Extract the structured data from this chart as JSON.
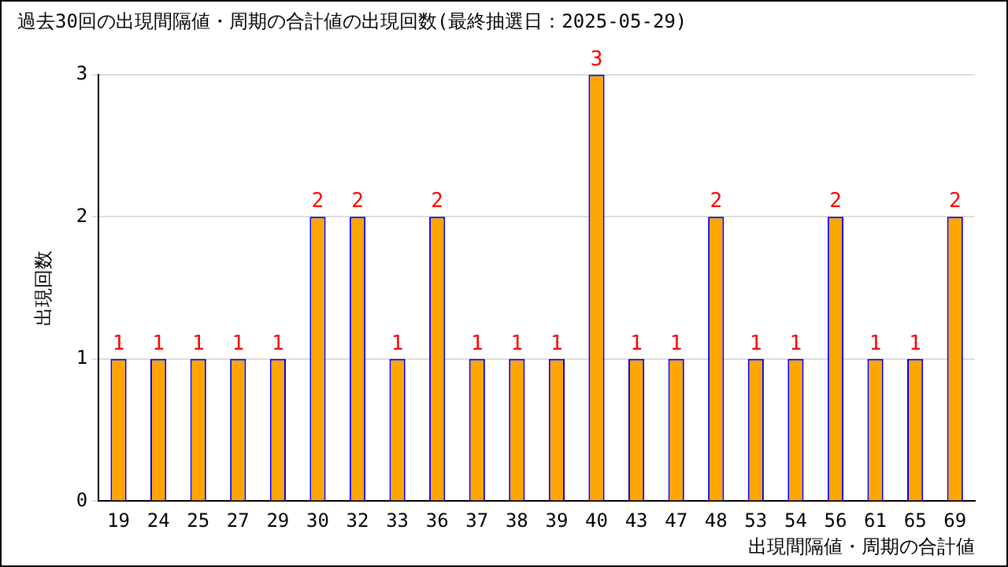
{
  "chart_data": {
    "type": "bar",
    "title": "過去30回の出現間隔値・周期の合計値の出現回数(最終抽選日：2025-05-29)",
    "xlabel": "出現間隔値・周期の合計値",
    "ylabel": "出現回数",
    "categories": [
      "19",
      "24",
      "25",
      "27",
      "29",
      "30",
      "32",
      "33",
      "36",
      "37",
      "38",
      "39",
      "40",
      "43",
      "47",
      "48",
      "53",
      "54",
      "56",
      "61",
      "65",
      "69"
    ],
    "values": [
      1,
      1,
      1,
      1,
      1,
      2,
      2,
      1,
      2,
      1,
      1,
      1,
      3,
      1,
      1,
      2,
      1,
      1,
      2,
      1,
      1,
      2
    ],
    "color": "#ffa500",
    "ylim": [
      0,
      3
    ],
    "yticks": [
      0,
      1,
      2,
      3
    ],
    "grid": "y",
    "data_labels": true,
    "legend": false
  }
}
